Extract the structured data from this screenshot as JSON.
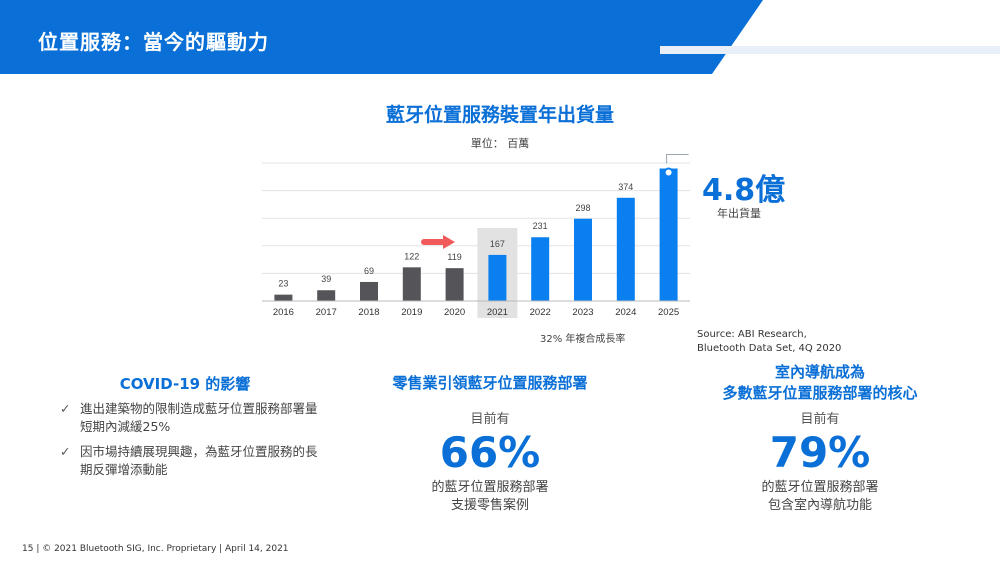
{
  "header": {
    "title": "位置服務：當今的驅動力"
  },
  "chart_data": {
    "type": "bar",
    "title": "藍牙位置服務裝置年出貨量",
    "unit_label": "單位： 百萬",
    "categories": [
      "2016",
      "2017",
      "2018",
      "2019",
      "2020",
      "2021",
      "2022",
      "2023",
      "2024",
      "2025"
    ],
    "values": [
      23,
      39,
      69,
      122,
      119,
      167,
      231,
      298,
      374,
      480
    ],
    "value_labels": [
      "23",
      "39",
      "69",
      "122",
      "119",
      "167",
      "231",
      "298",
      "374",
      ""
    ],
    "colors": [
      "#555559",
      "#555559",
      "#555559",
      "#555559",
      "#555559",
      "#0a7ff0",
      "#0a7ff0",
      "#0a7ff0",
      "#0a7ff0",
      "#0a7ff0"
    ],
    "highlight_category": "2021",
    "ylim": [
      0,
      500
    ],
    "grid": true,
    "cagr_note": "32% 年複合成長率",
    "callout_value": "4.8億",
    "callout_caption": "年出貨量"
  },
  "source": {
    "line1": "Source: ABI Research,",
    "line2": "Bluetooth Data Set, 4Q 2020"
  },
  "covid": {
    "title": "COVID-19 的影響",
    "items": [
      "進出建築物的限制造成藍牙位置服務部署量短期內減緩25%",
      "因市場持續展現興趣，為藍牙位置服務的長期反彈增添動能"
    ]
  },
  "retail": {
    "title": "零售業引領藍牙位置服務部署",
    "pre": "目前有",
    "pct": "66%",
    "desc1": "的藍牙位置服務部署",
    "desc2": "支援零售案例"
  },
  "indoor": {
    "title1": "室內導航成為",
    "title2": "多數藍牙位置服務部署的核心",
    "pre": "目前有",
    "pct": "79%",
    "desc1": "的藍牙位置服務部署",
    "desc2": "包含室內導航功能"
  },
  "footer": {
    "text": "15 | © 2021 Bluetooth SIG, Inc. Proprietary | April 14, 2021"
  }
}
